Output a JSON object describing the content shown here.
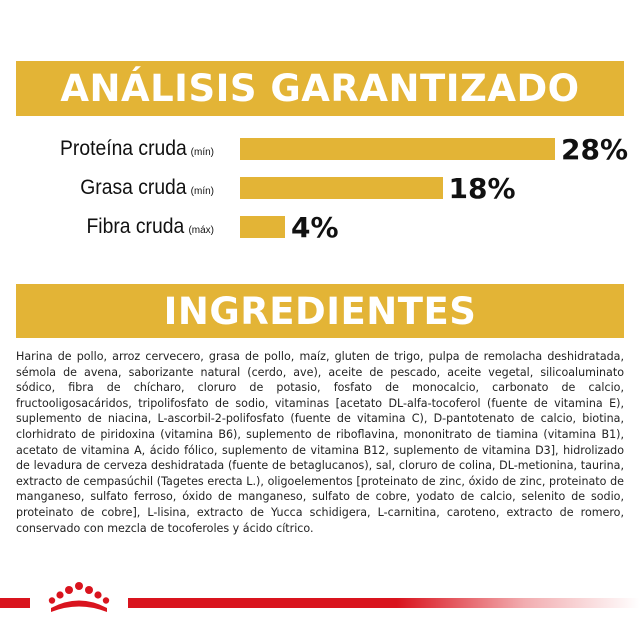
{
  "analysis": {
    "heading": "ANÁLISIS GARANTIZADO",
    "accent_color": "#e3b436",
    "nutrients": [
      {
        "name": "Proteína cruda",
        "qualifier": "(mín)",
        "value": "28%",
        "percent": 28
      },
      {
        "name": "Grasa cruda",
        "qualifier": "(mín)",
        "value": "18%",
        "percent": 18
      },
      {
        "name": "Fibra cruda",
        "qualifier": "(máx)",
        "value": "4%",
        "percent": 4
      }
    ]
  },
  "ingredients": {
    "heading": "INGREDIENTES",
    "text": "Harina de pollo, arroz cervecero, grasa de pollo, maíz, gluten de trigo, pulpa de remolacha deshidratada, sémola de avena, saborizante natural (cerdo, ave), aceite de pescado, aceite vegetal, silicoaluminato sódico, fibra de chícharo, cloruro de potasio, fosfato de monocalcio, carbonato de calcio, fructooligosacáridos, tripolifosfato de sodio, vitaminas [acetato DL-alfa-tocoferol (fuente de vitamina E), suplemento de niacina, L-ascorbil-2-polifosfato (fuente de vitamina C), D-pantotenato de calcio, biotina, clorhidrato de piridoxina (vitamina B6), suplemento de riboflavina, mononitrato de tiamina (vitamina B1), acetato de vitamina A, ácido fólico, suplemento de vitamina B12, suplemento de vitamina D3], hidrolizado de levadura de cerveza deshidratada (fuente de betaglucanos), sal, cloruro de colina, DL-metionina, taurina, extracto de cempasúchil (Tagetes erecta L.), oligoelementos [proteinato de zinc, óxido de zinc, proteinato de manganeso, sulfato ferroso, óxido de manganeso, sulfato de cobre, yodato de calcio, selenito de sodio, proteinato de cobre], L-lisina, extracto de Yucca schidigera, L-carnitina, caroteno, extracto de romero, conservado con mezcla de tocoferoles y ácido cítrico."
  },
  "footer": {
    "brand_color": "#d9141e",
    "logo_icon": "royal-canin-crown-icon"
  }
}
